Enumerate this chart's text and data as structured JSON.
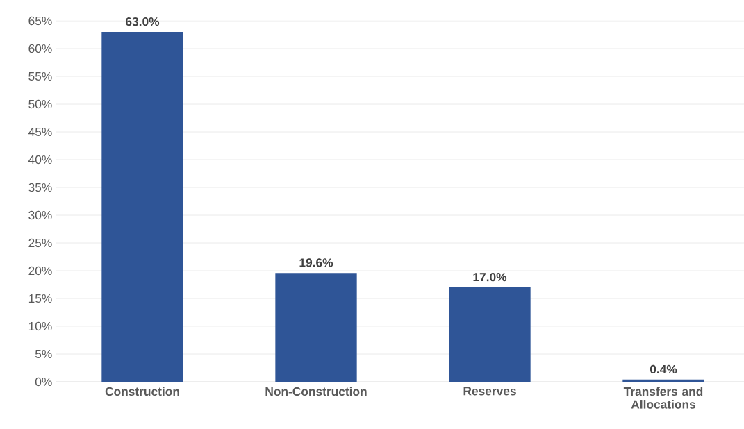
{
  "chart_data": {
    "type": "bar",
    "categories": [
      "Construction",
      "Non-Construction",
      "Reserves",
      "Transfers and Allocations"
    ],
    "values": [
      63.0,
      19.6,
      17.0,
      0.4
    ],
    "value_labels": [
      "63.0%",
      "19.6%",
      "17.0%",
      "0.4%"
    ],
    "color": "#2f5597",
    "ylim": [
      0,
      65
    ],
    "yticks": [
      {
        "value": 0,
        "label": "0%"
      },
      {
        "value": 5,
        "label": "5%"
      },
      {
        "value": 10,
        "label": "10%"
      },
      {
        "value": 15,
        "label": "15%"
      },
      {
        "value": 20,
        "label": "20%"
      },
      {
        "value": 25,
        "label": "25%"
      },
      {
        "value": 30,
        "label": "30%"
      },
      {
        "value": 35,
        "label": "35%"
      },
      {
        "value": 40,
        "label": "40%"
      },
      {
        "value": 45,
        "label": "45%"
      },
      {
        "value": 50,
        "label": "50%"
      },
      {
        "value": 55,
        "label": "55%"
      },
      {
        "value": 60,
        "label": "60%"
      },
      {
        "value": 65,
        "label": "65%"
      }
    ],
    "grid": "y"
  }
}
